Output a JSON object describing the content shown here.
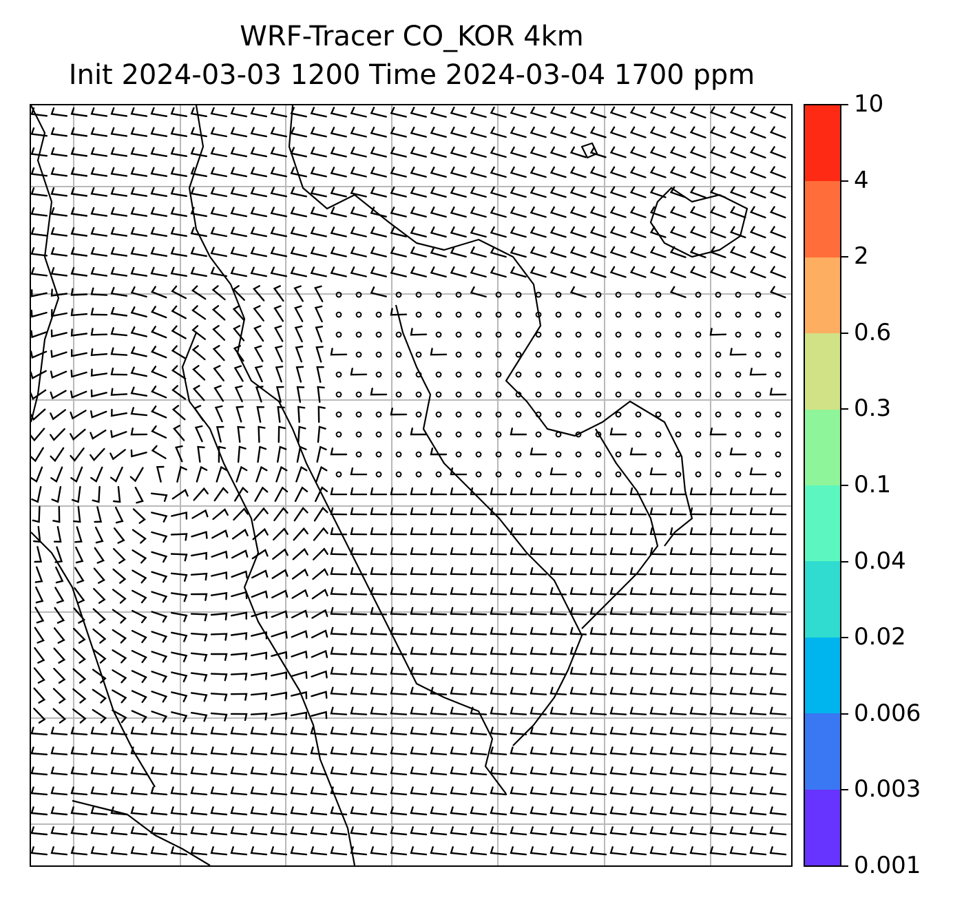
{
  "title": {
    "line1": "WRF-Tracer CO_KOR 4km",
    "line2": "Init 2024-03-03 1200 Time 2024-03-04 1700 ppm"
  },
  "colorbar": {
    "labels": [
      "10",
      "4",
      "2",
      "0.6",
      "0.3",
      "0.1",
      "0.04",
      "0.02",
      "0.006",
      "0.003",
      "0.001"
    ],
    "colors_top_to_bottom": [
      "#ff2a14",
      "#ff6e3a",
      "#fdae61",
      "#d1e185",
      "#8ff59a",
      "#5cf7c0",
      "#2fdccf",
      "#00b4ed",
      "#3a77f2",
      "#6633ff"
    ]
  },
  "map": {
    "gridlines": true,
    "gridline_color": "#b8b8b8",
    "wind_barbs": true,
    "coastline_color": "#000000"
  }
}
